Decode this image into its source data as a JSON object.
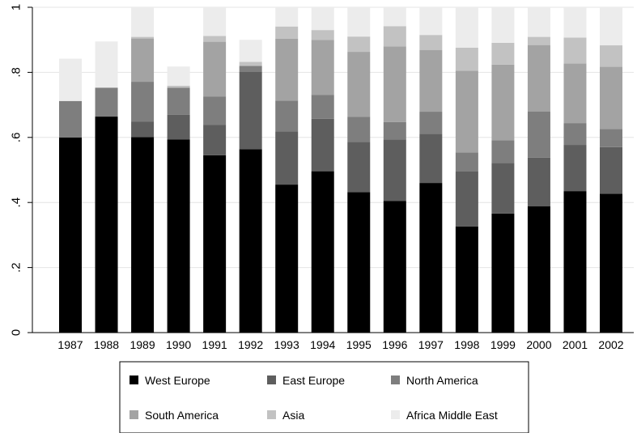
{
  "chart_data": {
    "type": "bar",
    "stacked": true,
    "categories": [
      "1987",
      "1988",
      "1989",
      "1990",
      "1991",
      "1992",
      "1993",
      "1994",
      "1995",
      "1996",
      "1997",
      "1998",
      "1999",
      "2000",
      "2001",
      "2002"
    ],
    "ylim": [
      0,
      1
    ],
    "yticks": [
      0,
      0.2,
      0.4,
      0.6,
      0.8,
      1
    ],
    "ytick_labels": [
      "0",
      ".2",
      ".4",
      ".6",
      ".8",
      "1"
    ],
    "grid": true,
    "legend_position": "bottom",
    "series": [
      {
        "name": "West Europe",
        "color": "#000000",
        "values": [
          0.6,
          0.664,
          0.601,
          0.594,
          0.545,
          0.564,
          0.455,
          0.496,
          0.432,
          0.405,
          0.46,
          0.326,
          0.366,
          0.388,
          0.435,
          0.427
        ]
      },
      {
        "name": "East Europe",
        "color": "#5e5e5e",
        "values": [
          0.0,
          0.0,
          0.047,
          0.076,
          0.094,
          0.237,
          0.163,
          0.161,
          0.154,
          0.189,
          0.151,
          0.17,
          0.155,
          0.15,
          0.142,
          0.143
        ]
      },
      {
        "name": "North America",
        "color": "#7e7e7e",
        "values": [
          0.112,
          0.089,
          0.123,
          0.083,
          0.087,
          0.019,
          0.095,
          0.074,
          0.077,
          0.053,
          0.068,
          0.058,
          0.07,
          0.142,
          0.067,
          0.056
        ]
      },
      {
        "name": "South America",
        "color": "#a3a3a3",
        "values": [
          0.0,
          0.0,
          0.133,
          0.0,
          0.168,
          0.0,
          0.19,
          0.169,
          0.2,
          0.233,
          0.19,
          0.251,
          0.233,
          0.204,
          0.183,
          0.191
        ]
      },
      {
        "name": "Asia",
        "color": "#c2c2c2",
        "values": [
          0.0,
          0.0,
          0.005,
          0.006,
          0.018,
          0.012,
          0.038,
          0.03,
          0.047,
          0.062,
          0.046,
          0.071,
          0.067,
          0.025,
          0.08,
          0.066
        ]
      },
      {
        "name": "Africa Middle East",
        "color": "#ececec",
        "values": [
          0.13,
          0.142,
          0.091,
          0.059,
          0.088,
          0.068,
          0.059,
          0.07,
          0.09,
          0.058,
          0.085,
          0.124,
          0.109,
          0.091,
          0.093,
          0.117
        ]
      }
    ]
  }
}
